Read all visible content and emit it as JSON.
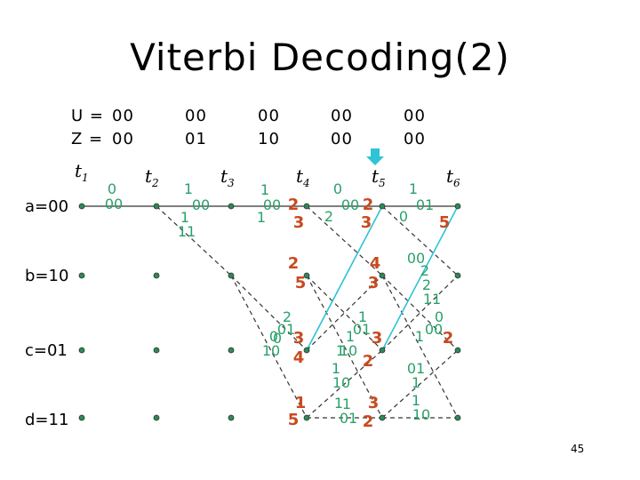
{
  "title": "Viterbi Decoding(2)",
  "page_number": "45",
  "header": {
    "U_label": "U =",
    "Z_label": "Z =",
    "U": [
      "00",
      "00",
      "00",
      "00",
      "00"
    ],
    "Z": [
      "00",
      "01",
      "10",
      "00",
      "00"
    ]
  },
  "time_labels": [
    {
      "t": "t",
      "sub": "1"
    },
    {
      "t": "t",
      "sub": "2"
    },
    {
      "t": "t",
      "sub": "3"
    },
    {
      "t": "t",
      "sub": "4"
    },
    {
      "t": "t",
      "sub": "5"
    },
    {
      "t": "t",
      "sub": "6"
    }
  ],
  "states": [
    "a=00",
    "b=10",
    "c=01",
    "d=11"
  ],
  "colors": {
    "branch_metric": "#2aa06a",
    "path_metric": "#c84a1e",
    "highlight": "#2ec4d6",
    "node": "#2a8a5a"
  },
  "branch_labels": [
    {
      "text": "0",
      "k": "m"
    },
    {
      "text": "00",
      "k": "m"
    },
    {
      "text": "1",
      "k": "m"
    },
    {
      "text": "00",
      "k": "m"
    },
    {
      "text": "1",
      "k": "m"
    },
    {
      "text": "11",
      "k": "m"
    },
    {
      "text": "1",
      "k": "m"
    },
    {
      "text": "00",
      "k": "m"
    },
    {
      "text": "1",
      "k": "m"
    },
    {
      "text": "2",
      "k": "m"
    },
    {
      "text": "0",
      "k": "m"
    },
    {
      "text": "01",
      "k": "m"
    },
    {
      "text": "0",
      "k": "m"
    },
    {
      "text": "10",
      "k": "m"
    },
    {
      "text": "1",
      "k": "m"
    },
    {
      "text": "1",
      "k": "m"
    },
    {
      "text": "0",
      "k": "m"
    },
    {
      "text": "00",
      "k": "m"
    },
    {
      "text": "2",
      "k": "m"
    },
    {
      "text": "1",
      "k": "m"
    },
    {
      "text": "01",
      "k": "m"
    },
    {
      "text": "1",
      "k": "m"
    },
    {
      "text": "10",
      "k": "m"
    },
    {
      "text": "1",
      "k": "m"
    },
    {
      "text": "10",
      "k": "m"
    },
    {
      "text": "1",
      "k": "m"
    },
    {
      "text": "01",
      "k": "m"
    },
    {
      "text": "0",
      "k": "m"
    },
    {
      "text": "00",
      "k": "m"
    },
    {
      "text": "2",
      "k": "m"
    },
    {
      "text": "2",
      "k": "m"
    },
    {
      "text": "11",
      "k": "m"
    },
    {
      "text": "0",
      "k": "m"
    },
    {
      "text": "00",
      "k": "m"
    },
    {
      "text": "1",
      "k": "m"
    },
    {
      "text": "01",
      "k": "m"
    },
    {
      "text": "1",
      "k": "m"
    },
    {
      "text": "1",
      "k": "m"
    },
    {
      "text": "10",
      "k": "m"
    },
    {
      "text": "1",
      "k": "m"
    },
    {
      "text": "01",
      "k": "m"
    }
  ],
  "path_metrics": [
    {
      "text": "2"
    },
    {
      "text": "3"
    },
    {
      "text": "2"
    },
    {
      "text": "3"
    },
    {
      "text": "3"
    },
    {
      "text": "4"
    },
    {
      "text": "1"
    },
    {
      "text": "5"
    },
    {
      "text": "2"
    },
    {
      "text": "5"
    },
    {
      "text": "4"
    },
    {
      "text": "3"
    },
    {
      "text": "3"
    },
    {
      "text": "2"
    },
    {
      "text": "3"
    },
    {
      "text": "2"
    },
    {
      "text": "5"
    },
    {
      "text": "2"
    }
  ]
}
